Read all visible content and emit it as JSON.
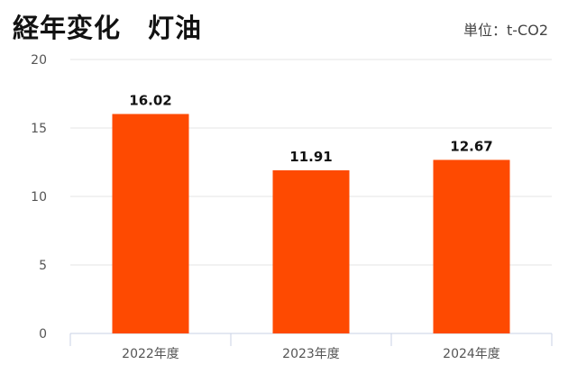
{
  "header": {
    "title": "経年変化　灯油",
    "unit": "単位：t-CO2"
  },
  "colors": {
    "bar": "#fe4a01",
    "grid": "#e6e6e6",
    "axis": "#c8d2e6"
  },
  "chart_data": {
    "type": "bar",
    "title": "経年変化　灯油",
    "xlabel": "",
    "ylabel": "",
    "categories": [
      "2022年度",
      "2023年度",
      "2024年度"
    ],
    "values": [
      16.02,
      11.91,
      12.67
    ],
    "data_labels": [
      "16.02",
      "11.91",
      "12.67"
    ],
    "ylim": [
      0,
      20
    ],
    "yticks": [
      "0",
      "5",
      "10",
      "15",
      "20"
    ],
    "grid": true,
    "legend": "none"
  }
}
